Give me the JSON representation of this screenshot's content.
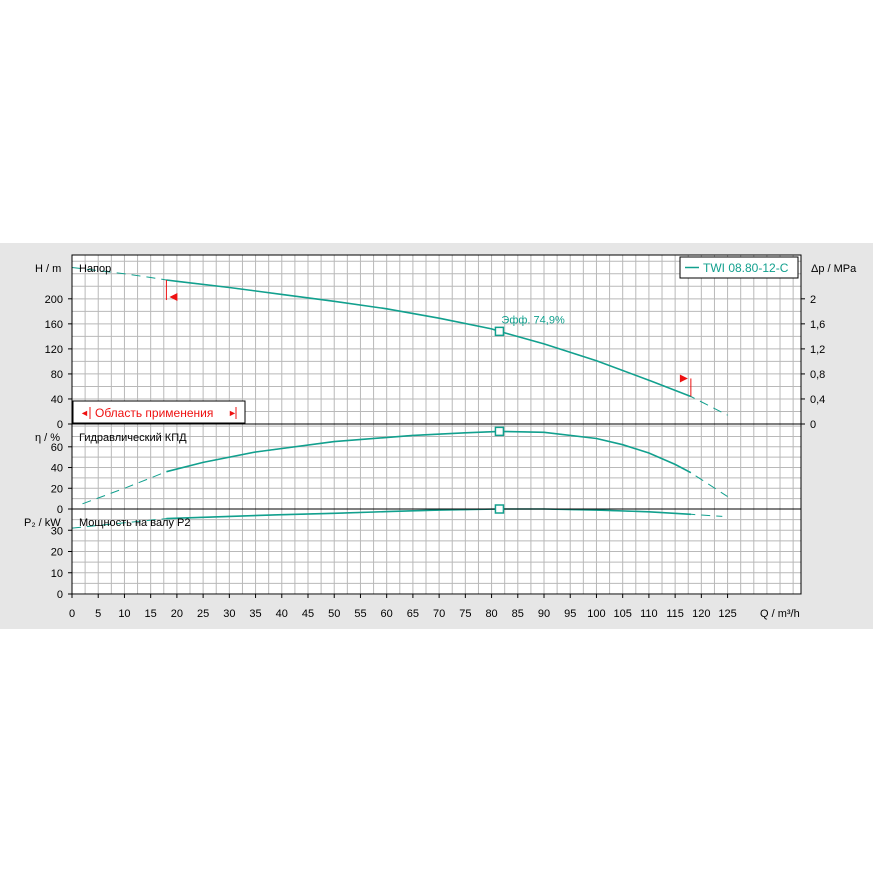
{
  "colors": {
    "curve": "#12a08e",
    "grid": "#b9b9b9",
    "frame": "#000000",
    "panel": "#e6e6e6",
    "plot": "#ffffff",
    "range_marker": "#ee1111"
  },
  "legend": {
    "label": "TWI 08.80-12-C"
  },
  "range_box": {
    "label": "Область применения",
    "left_glyph": "◄",
    "right_glyph": "►"
  },
  "duty_point": {
    "q": 81.5,
    "annotation": "Эфф.  74,9%"
  },
  "x_axis": {
    "unit_label": "Q / m³/h",
    "min": 0,
    "max": 139,
    "ticks": [
      0,
      5,
      10,
      15,
      20,
      25,
      30,
      35,
      40,
      45,
      50,
      55,
      60,
      65,
      70,
      75,
      80,
      85,
      90,
      95,
      100,
      105,
      110,
      115,
      120,
      125
    ]
  },
  "chart_data": [
    {
      "type": "line",
      "title": "Напор",
      "ylabel": "H / m",
      "ylim": [
        0,
        270
      ],
      "yticks": [
        0,
        40,
        80,
        120,
        160,
        200
      ],
      "secondary_axis": {
        "label": "Δp / MPa",
        "ticks": [
          "0",
          "0,4",
          "0,8",
          "1,2",
          "1,6",
          "2"
        ],
        "values": [
          0,
          0.4,
          0.8,
          1.2,
          1.6,
          2.0
        ]
      },
      "series": [
        {
          "name": "TWI 08.80-12-C",
          "x": [
            0,
            5,
            10,
            15,
            18,
            20,
            30,
            40,
            50,
            60,
            70,
            80,
            81.5,
            90,
            100,
            110,
            118,
            125
          ],
          "y": [
            250,
            245,
            240,
            234,
            230,
            228,
            218,
            207,
            196,
            184,
            169,
            152,
            148,
            128,
            101,
            70,
            44,
            14
          ]
        }
      ],
      "operating_range": {
        "q_min": 18,
        "q_max": 118
      },
      "grid": true
    },
    {
      "type": "line",
      "title": "Гидравлический КПД",
      "ylabel": "η / %",
      "ylim": [
        0,
        82
      ],
      "yticks": [
        0,
        20,
        40,
        60
      ],
      "series": [
        {
          "name": "Гидравлический КПД",
          "x": [
            2,
            10,
            18,
            25,
            35,
            50,
            65,
            75,
            81.5,
            90,
            100,
            105,
            110,
            115,
            118,
            125
          ],
          "y": [
            5,
            20,
            36,
            45,
            55,
            65,
            71,
            73.5,
            74.9,
            74,
            68,
            62,
            54,
            43,
            35,
            12
          ]
        }
      ],
      "grid": true
    },
    {
      "type": "line",
      "title": "Мощность на валу P2",
      "ylabel": "P₂ / kW",
      "ylim": [
        0,
        40
      ],
      "yticks": [
        0,
        10,
        20,
        30
      ],
      "series": [
        {
          "name": "Мощность на валу P2",
          "x": [
            0,
            10,
            18,
            30,
            40,
            50,
            60,
            70,
            81.5,
            90,
            100,
            110,
            118,
            124
          ],
          "y": [
            31,
            33.5,
            35.5,
            36.5,
            37.3,
            38,
            38.8,
            39.5,
            40,
            40,
            39.5,
            38.7,
            37.5,
            36.5
          ]
        }
      ],
      "grid": true
    }
  ]
}
